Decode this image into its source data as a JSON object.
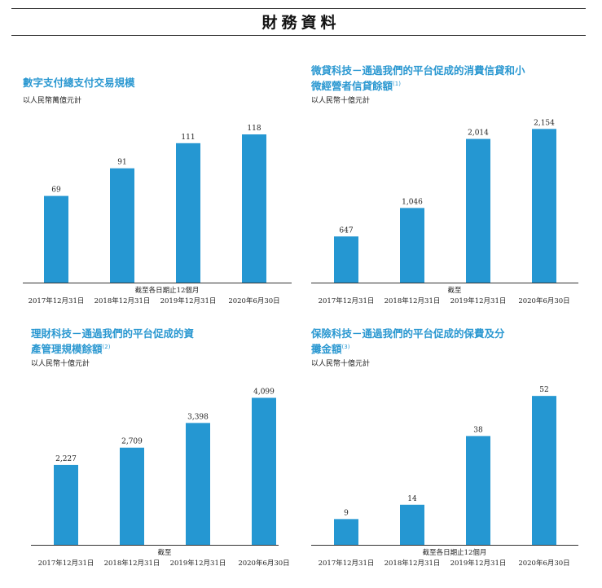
{
  "page": {
    "title": "財務資料"
  },
  "colors": {
    "bar": "#2597d2",
    "title": "#2b98d1",
    "axis": "#333333"
  },
  "chart_data": [
    {
      "type": "bar",
      "title": "數字支付總支付交易規模",
      "footnote": "",
      "unit": "以人民幣萬億元計",
      "xlabel": "截至各日期止12個月",
      "categories": [
        "2017年12月31日",
        "2018年12月31日",
        "2019年12月31日",
        "2020年6月30日"
      ],
      "values": [
        69,
        91,
        111,
        118
      ],
      "labels": [
        "69",
        "91",
        "111",
        "118"
      ],
      "ylim": [
        0,
        142
      ]
    },
    {
      "type": "bar",
      "title": "微貸科技－通過我們的平台促成的消費信貸和小微經營者信貸餘額",
      "footnote": "(1)",
      "unit": "以人民幣十億元計",
      "xlabel": "截至",
      "categories": [
        "2017年12月31日",
        "2018年12月31日",
        "2019年12月31日",
        "2020年6月30日"
      ],
      "values": [
        647,
        1046,
        2014,
        2154
      ],
      "labels": [
        "647",
        "1,046",
        "2,014",
        "2,154"
      ],
      "ylim": [
        0,
        2500
      ]
    },
    {
      "type": "bar",
      "title": "理財科技－通過我們的平台促成的資產管理規模餘額",
      "footnote": "(2)",
      "unit": "以人民幣十億元計",
      "xlabel": "截至",
      "categories": [
        "2017年12月31日",
        "2018年12月31日",
        "2019年12月31日",
        "2020年6月30日"
      ],
      "values": [
        2227,
        2709,
        3398,
        4099
      ],
      "labels": [
        "2,227",
        "2,709",
        "3,398",
        "4,099"
      ],
      "ylim": [
        0,
        4950
      ]
    },
    {
      "type": "bar",
      "title": "保險科技－通過我們的平台促成的保費及分攤金額",
      "footnote": "(3)",
      "unit": "以人民幣十億元計",
      "xlabel": "截至各日期止12個月",
      "categories": [
        "2017年12月31日",
        "2018年12月31日",
        "2019年12月31日",
        "2020年6月30日"
      ],
      "values": [
        9,
        14,
        38,
        52
      ],
      "labels": [
        "9",
        "14",
        "38",
        "52"
      ],
      "ylim": [
        0,
        62
      ]
    }
  ]
}
